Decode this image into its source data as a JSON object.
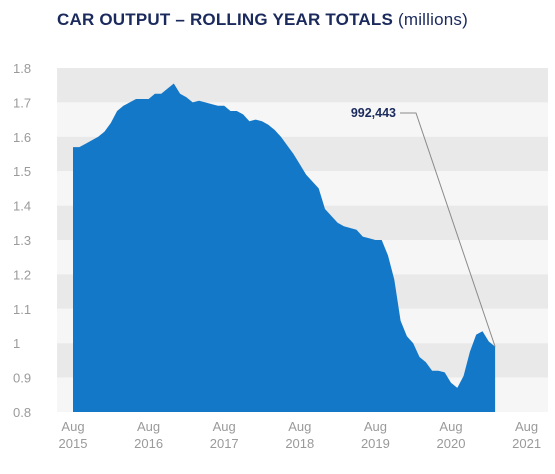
{
  "chart_data": {
    "type": "area",
    "title": "CAR OUTPUT – ROLLING YEAR TOTALS",
    "unit": "(millions)",
    "xlabel": "",
    "ylabel": "",
    "ylim": [
      0.8,
      1.8
    ],
    "yticks": [
      "1.8",
      "1.7",
      "1.6",
      "1.5",
      "1.4",
      "1.3",
      "1.2",
      "1.1",
      "1",
      "0.9",
      "0.8"
    ],
    "xticks": [
      {
        "month": "Aug",
        "year": "2015",
        "t": 0
      },
      {
        "month": "Aug",
        "year": "2016",
        "t": 12
      },
      {
        "month": "Aug",
        "year": "2017",
        "t": 24
      },
      {
        "month": "Aug",
        "year": "2018",
        "t": 36
      },
      {
        "month": "Aug",
        "year": "2019",
        "t": 48
      },
      {
        "month": "Aug",
        "year": "2020",
        "t": 60
      },
      {
        "month": "Aug",
        "year": "2021",
        "t": 72
      }
    ],
    "grid": "horizontal bands",
    "color": "#1478c8",
    "series": [
      {
        "values": [
          1.57,
          1.57,
          1.58,
          1.59,
          1.6,
          1.615,
          1.64,
          1.675,
          1.69,
          1.7,
          1.71,
          1.71,
          1.71,
          1.725,
          1.725,
          1.74,
          1.755,
          1.725,
          1.715,
          1.7,
          1.705,
          1.7,
          1.695,
          1.69,
          1.69,
          1.675,
          1.675,
          1.665,
          1.645,
          1.65,
          1.645,
          1.635,
          1.62,
          1.6,
          1.575,
          1.55,
          1.52,
          1.49,
          1.47,
          1.45,
          1.39,
          1.37,
          1.35,
          1.34,
          1.335,
          1.33,
          1.31,
          1.305,
          1.3,
          1.3,
          1.255,
          1.185,
          1.065,
          1.02,
          1.0,
          0.96,
          0.945,
          0.92,
          0.92,
          0.915,
          0.885,
          0.87,
          0.905,
          0.975,
          1.025,
          1.035,
          1.005,
          0.99
        ]
      }
    ],
    "annotation": {
      "label": "992,443"
    }
  }
}
